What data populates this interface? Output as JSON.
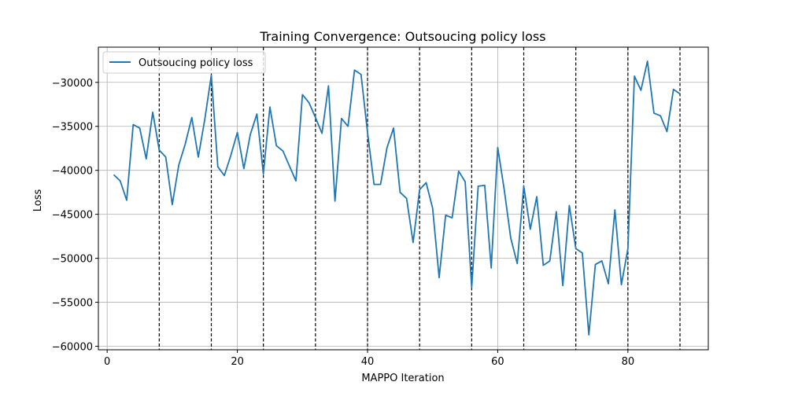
{
  "chart_data": {
    "type": "line",
    "title": "Training Convergence: Outsoucing policy loss",
    "xlabel": "MAPPO Iteration",
    "ylabel": "Loss",
    "xlim": [
      -1.35,
      92.35
    ],
    "ylim": [
      -60400,
      -26000
    ],
    "xticks": [
      0,
      20,
      40,
      60,
      80
    ],
    "yticks": [
      -60000,
      -55000,
      -50000,
      -45000,
      -40000,
      -35000,
      -30000
    ],
    "xtick_labels": [
      "0",
      "20",
      "40",
      "60",
      "80"
    ],
    "ytick_labels": [
      "−60000",
      "−55000",
      "−50000",
      "−45000",
      "−40000",
      "−35000",
      "−30000"
    ],
    "grid": true,
    "legend": {
      "location": "upper left"
    },
    "vlines": [
      8,
      16,
      24,
      32,
      40,
      48,
      56,
      64,
      72,
      80,
      88
    ],
    "series": [
      {
        "name": "Outsoucing policy loss",
        "color": "#1f77b4",
        "x": [
          1,
          2,
          3,
          4,
          5,
          6,
          7,
          8,
          9,
          10,
          11,
          12,
          13,
          14,
          15,
          16,
          17,
          18,
          19,
          20,
          21,
          22,
          23,
          24,
          25,
          26,
          27,
          28,
          29,
          30,
          31,
          32,
          33,
          34,
          35,
          36,
          37,
          38,
          39,
          40,
          41,
          42,
          43,
          44,
          45,
          46,
          47,
          48,
          49,
          50,
          51,
          52,
          53,
          54,
          55,
          56,
          57,
          58,
          59,
          60,
          61,
          62,
          63,
          64,
          65,
          66,
          67,
          68,
          69,
          70,
          71,
          72,
          73,
          74,
          75,
          76,
          77,
          78,
          79,
          80,
          81,
          82,
          83,
          84,
          85,
          86,
          87,
          88
        ],
        "y": [
          -40500,
          -41200,
          -43400,
          -34800,
          -35200,
          -38700,
          -33400,
          -37700,
          -38500,
          -43900,
          -39400,
          -37000,
          -34000,
          -38500,
          -34200,
          -29200,
          -39600,
          -40600,
          -38300,
          -35700,
          -39800,
          -35900,
          -33600,
          -40400,
          -32800,
          -37200,
          -37800,
          -39500,
          -41200,
          -31400,
          -32300,
          -34000,
          -35800,
          -30400,
          -43500,
          -34100,
          -35000,
          -28600,
          -29100,
          -35700,
          -41600,
          -41600,
          -37400,
          -35200,
          -42500,
          -43200,
          -48200,
          -42200,
          -41400,
          -44300,
          -52200,
          -45100,
          -45400,
          -40100,
          -41300,
          -53300,
          -41800,
          -41700,
          -51100,
          -37400,
          -42200,
          -47700,
          -50600,
          -41800,
          -46700,
          -43000,
          -50800,
          -50300,
          -44700,
          -53100,
          -44000,
          -48900,
          -49400,
          -58700,
          -50700,
          -50300,
          -52900,
          -44500,
          -53000,
          -48900,
          -29300,
          -30900,
          -27600,
          -33500,
          -33800,
          -35600,
          -30800,
          -31300
        ]
      }
    ]
  }
}
